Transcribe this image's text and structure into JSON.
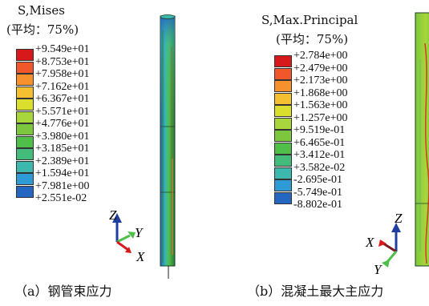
{
  "panels": [
    {
      "variable": "S,Mises",
      "averaging": "(平均：75%)",
      "legend": [
        {
          "value": "+9.549e+01",
          "color": "#d7191c"
        },
        {
          "value": "+8.753e+01",
          "color": "#f0582b"
        },
        {
          "value": "+7.958e+01",
          "color": "#f7912e"
        },
        {
          "value": "+7.162e+01",
          "color": "#f4c032"
        },
        {
          "value": "+6.367e+01",
          "color": "#d9df2c"
        },
        {
          "value": "+5.571e+01",
          "color": "#a9d63a"
        },
        {
          "value": "+4.776e+01",
          "color": "#7cc73e"
        },
        {
          "value": "+3.980e+01",
          "color": "#4fbf4a"
        },
        {
          "value": "+3.185e+01",
          "color": "#43bb7a"
        },
        {
          "value": "+2.389e+01",
          "color": "#3cb8ad"
        },
        {
          "value": "+1.594e+01",
          "color": "#2e9bd6"
        },
        {
          "value": "+7.981e+00",
          "color": "#2466c0"
        },
        {
          "value": "+2.551e-02",
          "color": "#1f3f9f"
        }
      ],
      "axes": {
        "z": "Z",
        "y": "Y",
        "x": "X"
      },
      "caption": "（a）钢管束应力"
    },
    {
      "variable": "S,Max.Principal",
      "averaging": "(平均：75%)",
      "legend": [
        {
          "value": "+2.784e+00",
          "color": "#d7191c"
        },
        {
          "value": "+2.479e+00",
          "color": "#f0582b"
        },
        {
          "value": "+2.173e+00",
          "color": "#f7912e"
        },
        {
          "value": "+1.868e+00",
          "color": "#f4c032"
        },
        {
          "value": "+1.563e+00",
          "color": "#d9df2c"
        },
        {
          "value": "+1.257e+00",
          "color": "#a9d63a"
        },
        {
          "value": "+9.519e-01",
          "color": "#7cc73e"
        },
        {
          "value": "+6.465e-01",
          "color": "#4fbf4a"
        },
        {
          "value": "+3.412e-01",
          "color": "#43bb7a"
        },
        {
          "value": "+3.582e-02",
          "color": "#3cb8ad"
        },
        {
          "value": "-2.695e-01",
          "color": "#2e9bd6"
        },
        {
          "value": "-5.749e-01",
          "color": "#2466c0"
        },
        {
          "value": "-8.802e-01",
          "color": "#1f3f9f"
        }
      ],
      "axes": {
        "z": "Z",
        "y": "Y",
        "x": "X"
      },
      "caption": "（b）混凝土最大主应力"
    }
  ]
}
